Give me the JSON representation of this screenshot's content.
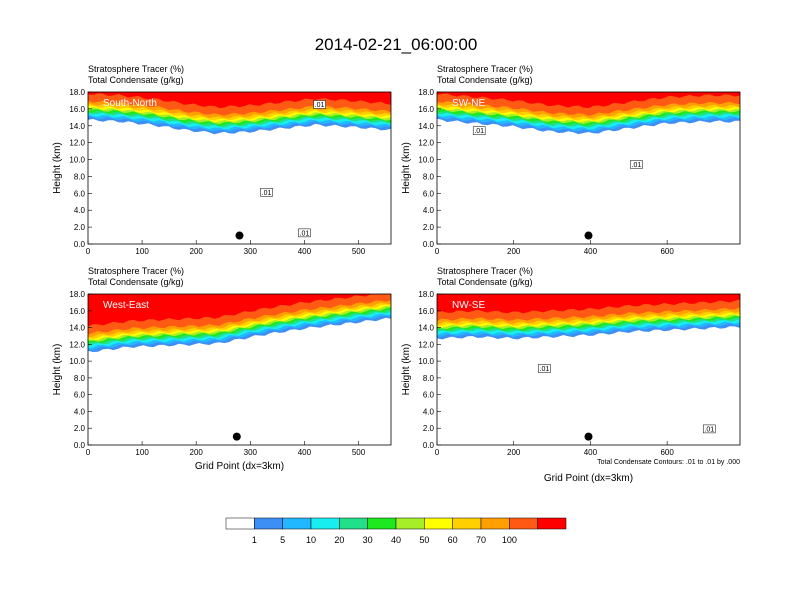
{
  "title": "2014-02-21_06:00:00",
  "colors": {
    "levels": [
      "#ffffff",
      "#3d8ef5",
      "#22b8ff",
      "#18eef0",
      "#22e08a",
      "#1ee81e",
      "#a6ee28",
      "#ffff00",
      "#ffcf00",
      "#ffa000",
      "#ff5a14",
      "#ff0000"
    ]
  },
  "chart_data": [
    {
      "type": "heatmap",
      "panel": "South-North",
      "label1": "Stratosphere Tracer   (%)",
      "label2": "Total Condensate   (g/kg)",
      "ylabel": "Height (km)",
      "xlabel": "",
      "xlim": [
        0,
        560
      ],
      "ylim": [
        0,
        18
      ],
      "xticks": [
        0,
        100,
        200,
        300,
        400,
        500
      ],
      "yticks": [
        0,
        2,
        4,
        6,
        8,
        10,
        12,
        14,
        16,
        18
      ],
      "ytick_labels": [
        "0.0",
        "2.0",
        "4.0",
        "6.0",
        "8.0",
        "10.0",
        "12.0",
        "14.0",
        "16.0",
        "18.0"
      ],
      "tropopause_km": [
        [
          0,
          15.6
        ],
        [
          60,
          15.4
        ],
        [
          120,
          15.0
        ],
        [
          180,
          14.4
        ],
        [
          240,
          14.0
        ],
        [
          300,
          14.2
        ],
        [
          360,
          14.6
        ],
        [
          420,
          15.0
        ],
        [
          480,
          14.8
        ],
        [
          560,
          14.4
        ]
      ],
      "dot": {
        "x": 280,
        "y": 1.0
      },
      "contour_labels": [
        {
          "x": 428,
          "y": 16.4,
          "text": ".01"
        },
        {
          "x": 330,
          "y": 6.0,
          "text": ".01"
        },
        {
          "x": 400,
          "y": 1.2,
          "text": ".01"
        }
      ]
    },
    {
      "type": "heatmap",
      "panel": "SW-NE",
      "label1": "Stratosphere Tracer   (%)",
      "label2": "Total Condensate   (g/kg)",
      "ylabel": "Height (km)",
      "xlabel": "",
      "xlim": [
        0,
        790
      ],
      "ylim": [
        0,
        18
      ],
      "xticks": [
        0,
        200,
        400,
        600
      ],
      "yticks": [
        0,
        2,
        4,
        6,
        8,
        10,
        12,
        14,
        16,
        18
      ],
      "ytick_labels": [
        "0.0",
        "2.0",
        "4.0",
        "6.0",
        "8.0",
        "10.0",
        "12.0",
        "14.0",
        "16.0",
        "18.0"
      ],
      "tropopause_km": [
        [
          0,
          15.6
        ],
        [
          100,
          15.2
        ],
        [
          200,
          14.8
        ],
        [
          300,
          14.2
        ],
        [
          400,
          14.0
        ],
        [
          500,
          14.6
        ],
        [
          600,
          15.2
        ],
        [
          700,
          15.4
        ],
        [
          790,
          15.4
        ]
      ],
      "dot": {
        "x": 395,
        "y": 1.0
      },
      "contour_labels": [
        {
          "x": 110,
          "y": 13.3,
          "text": ".01"
        },
        {
          "x": 520,
          "y": 9.3,
          "text": ".01"
        }
      ]
    },
    {
      "type": "heatmap",
      "panel": "West-East",
      "label1": "Stratosphere Tracer   (%)",
      "label2": "Total Condensate   (g/kg)",
      "ylabel": "Height (km)",
      "xlabel": "Grid Point (dx=3km)",
      "xlim": [
        0,
        560
      ],
      "ylim": [
        0,
        18
      ],
      "xticks": [
        0,
        100,
        200,
        300,
        400,
        500
      ],
      "yticks": [
        0,
        2,
        4,
        6,
        8,
        10,
        12,
        14,
        16,
        18
      ],
      "ytick_labels": [
        "0.0",
        "2.0",
        "4.0",
        "6.0",
        "8.0",
        "10.0",
        "12.0",
        "14.0",
        "16.0",
        "18.0"
      ],
      "tropopause_km": [
        [
          0,
          12.0
        ],
        [
          80,
          12.6
        ],
        [
          160,
          12.8
        ],
        [
          240,
          13.0
        ],
        [
          320,
          14.0
        ],
        [
          400,
          14.8
        ],
        [
          480,
          15.4
        ],
        [
          560,
          16.0
        ]
      ],
      "dot": {
        "x": 275,
        "y": 1.0
      },
      "contour_labels": []
    },
    {
      "type": "heatmap",
      "panel": "NW-SE",
      "label1": "Stratosphere Tracer   (%)",
      "label2": "Total Condensate   (g/kg)",
      "ylabel": "Height (km)",
      "xlabel": "Grid Point (dx=3km)",
      "xlim": [
        0,
        790
      ],
      "ylim": [
        0,
        18
      ],
      "xticks": [
        0,
        200,
        400,
        600
      ],
      "yticks": [
        0,
        2,
        4,
        6,
        8,
        10,
        12,
        14,
        16,
        18
      ],
      "ytick_labels": [
        "0.0",
        "2.0",
        "4.0",
        "6.0",
        "8.0",
        "10.0",
        "12.0",
        "14.0",
        "16.0",
        "18.0"
      ],
      "tropopause_km": [
        [
          0,
          13.6
        ],
        [
          100,
          13.8
        ],
        [
          200,
          13.6
        ],
        [
          300,
          13.8
        ],
        [
          400,
          14.0
        ],
        [
          500,
          14.4
        ],
        [
          600,
          14.6
        ],
        [
          700,
          14.8
        ],
        [
          790,
          15.0
        ]
      ],
      "dot": {
        "x": 395,
        "y": 1.0
      },
      "contour_labels": [
        {
          "x": 280,
          "y": 9.0,
          "text": ".01"
        },
        {
          "x": 710,
          "y": 1.8,
          "text": ".01"
        }
      ],
      "contour_note": "Total Condensate Contours: .01 to .01 by .000"
    }
  ],
  "colorbar": {
    "labels": [
      "1",
      "5",
      "10",
      "20",
      "30",
      "40",
      "50",
      "60",
      "70",
      "100"
    ]
  }
}
